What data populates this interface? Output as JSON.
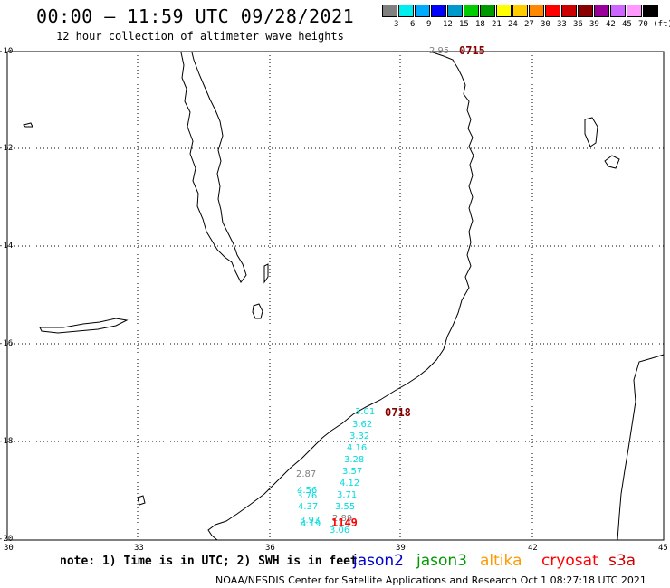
{
  "header": {
    "title": "00:00 – 11:59 UTC 09/28/2021",
    "subtitle": "12 hour collection of altimeter wave heights"
  },
  "color_scale": {
    "colors": [
      "#808080",
      "#00eeee",
      "#00aaff",
      "#0000ff",
      "#0099cc",
      "#00cc00",
      "#009900",
      "#ffff00",
      "#ffcc00",
      "#ff8800",
      "#ff0000",
      "#cc0000",
      "#880000",
      "#990099",
      "#cc66ff",
      "#ff99ff",
      "#000000"
    ],
    "labels": [
      "3",
      "6",
      "9",
      "12",
      "15",
      "18",
      "21",
      "24",
      "27",
      "30",
      "33",
      "36",
      "39",
      "42",
      "45",
      "70 (ft)"
    ]
  },
  "axes": {
    "lat_labels": [
      "-10",
      "-12",
      "-14",
      "-16",
      "-18",
      "-20"
    ],
    "lon_labels": [
      "30",
      "33",
      "36",
      "39",
      "42",
      "45"
    ]
  },
  "observations": [
    {
      "text": "2.95",
      "color": "#808080"
    },
    {
      "text": "3.01",
      "color": "#00dddd"
    },
    {
      "text": "3.62",
      "color": "#00dddd"
    },
    {
      "text": "3.32",
      "color": "#00dddd"
    },
    {
      "text": "4.16",
      "color": "#00dddd"
    },
    {
      "text": "3.28",
      "color": "#00dddd"
    },
    {
      "text": "3.57",
      "color": "#00dddd"
    },
    {
      "text": "2.87",
      "color": "#808080"
    },
    {
      "text": "4.12",
      "color": "#00dddd"
    },
    {
      "text": "4.56",
      "color": "#00dddd"
    },
    {
      "text": "3.76",
      "color": "#00dddd"
    },
    {
      "text": "3.71",
      "color": "#00dddd"
    },
    {
      "text": "4.37",
      "color": "#00dddd"
    },
    {
      "text": "3.55",
      "color": "#00dddd"
    },
    {
      "text": "2.89",
      "color": "#808080"
    },
    {
      "text": "3.93",
      "color": "#00dddd"
    },
    {
      "text": "4.19",
      "color": "#00dddd"
    },
    {
      "text": "3.06",
      "color": "#00dddd"
    }
  ],
  "pass_times": [
    {
      "text": "0715",
      "color": "#880000"
    },
    {
      "text": "0718",
      "color": "#880000"
    },
    {
      "text": "1149",
      "color": "#ff0000"
    }
  ],
  "footer": {
    "note": "note: 1) Time is in UTC; 2) SWH is in feet",
    "satellites": [
      {
        "name": "jason2",
        "color": "#0000cc"
      },
      {
        "name": "jason3",
        "color": "#009900"
      },
      {
        "name": "altika",
        "color": "#ff9900"
      },
      {
        "name": "cryosat",
        "color": "#ff0000"
      },
      {
        "name": "s3a",
        "color": "#cc0000"
      }
    ],
    "credit": "NOAA/NESDIS Center for Satellite Applications and Research    Oct  1 08:27:18 UTC 2021"
  }
}
